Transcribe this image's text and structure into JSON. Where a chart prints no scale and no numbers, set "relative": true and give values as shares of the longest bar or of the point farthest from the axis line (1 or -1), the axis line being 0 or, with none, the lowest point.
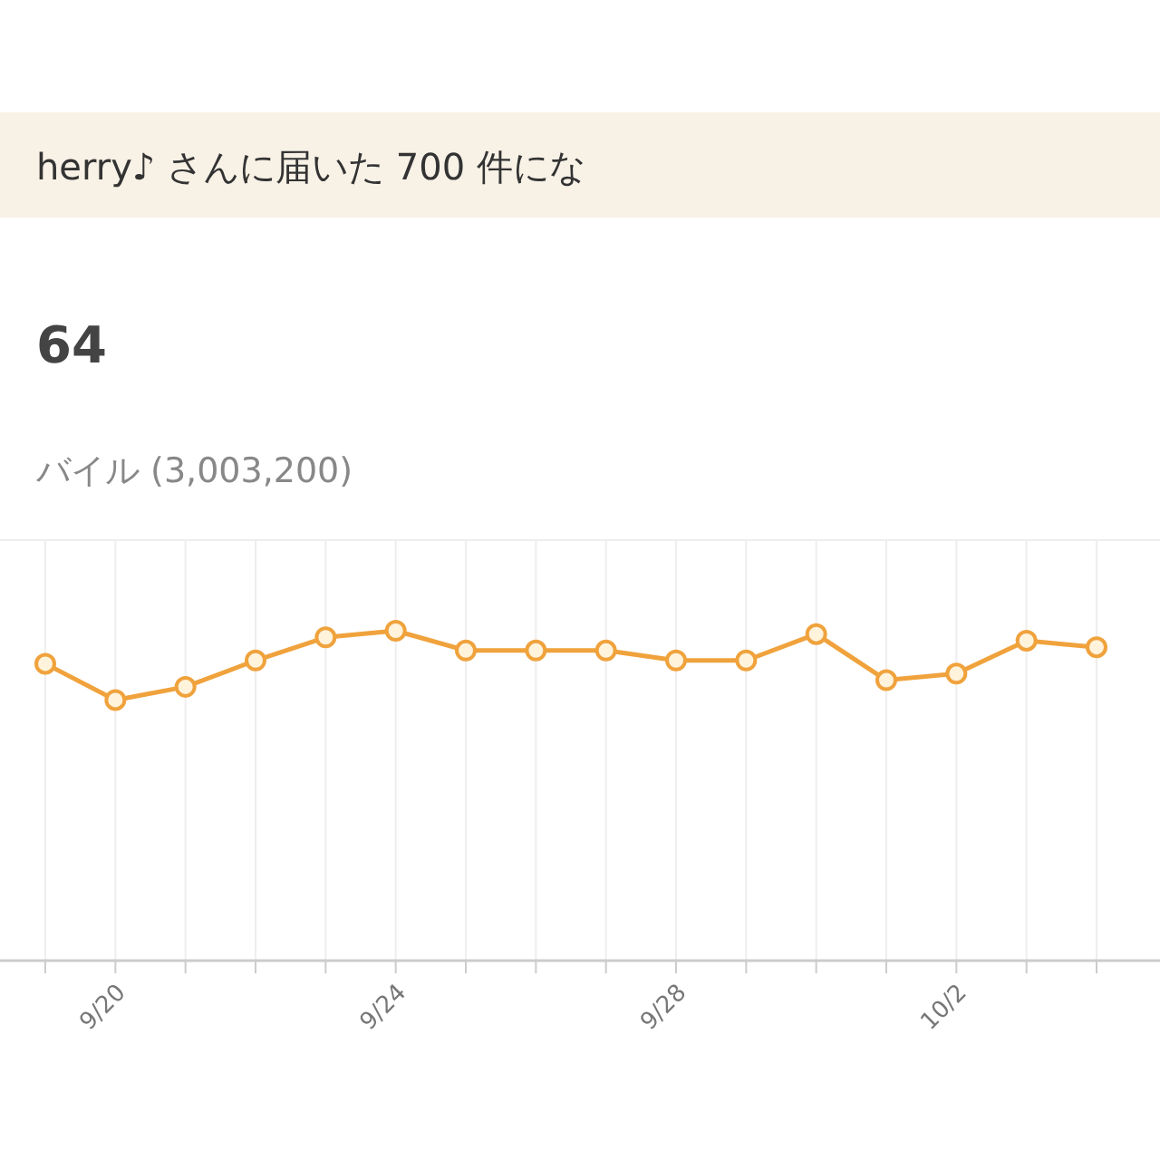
{
  "chart_data": {
    "type": "line",
    "title": "herry♪ さんに届いた 700 件にな",
    "subtitle": "64",
    "annotations": [
      "バイル (3,003,200)"
    ],
    "categories": [
      null,
      "9/20",
      null,
      null,
      null,
      "9/24",
      null,
      null,
      null,
      "9/28",
      null,
      null,
      null,
      "10/2",
      null,
      null
    ],
    "series": [
      {
        "color": "#f0a23c",
        "values": [
          0.9,
          0.79,
          0.83,
          0.91,
          0.98,
          1,
          0.94,
          0.94,
          0.94,
          0.91,
          0.91,
          0.99,
          0.85,
          0.87,
          0.97,
          0.95
        ]
      }
    ],
    "relative": true,
    "grid": "x",
    "marker": "circle",
    "line_style": "solid"
  }
}
